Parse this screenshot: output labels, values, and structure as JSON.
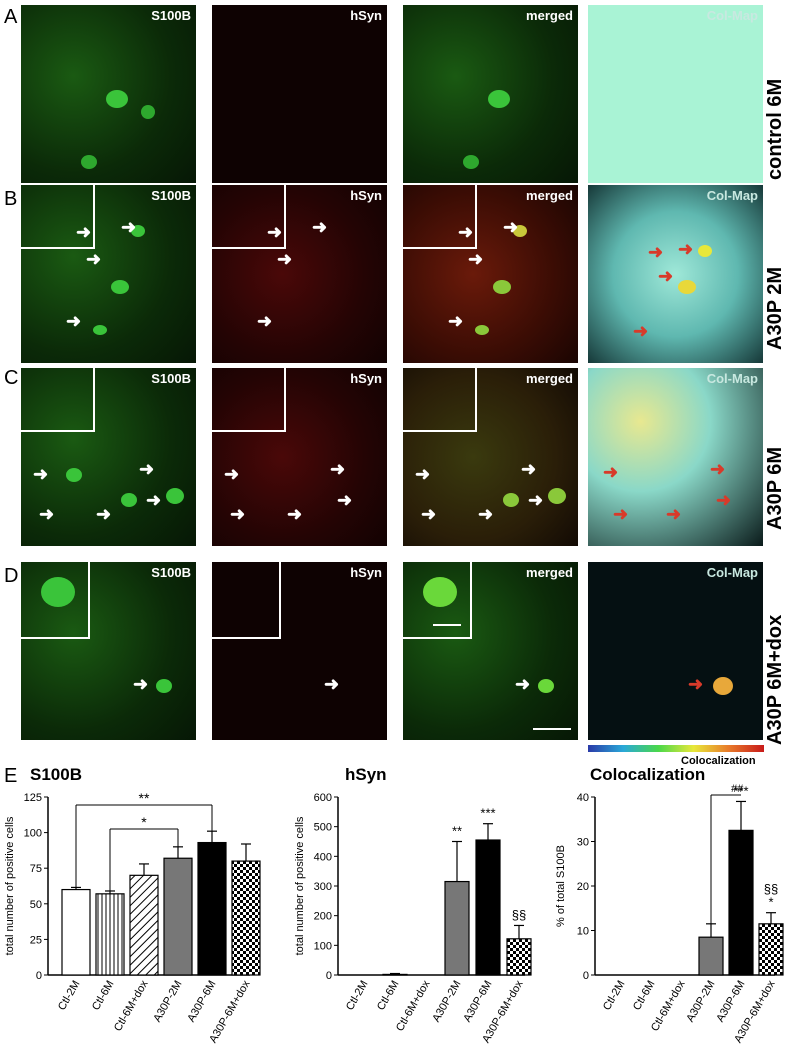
{
  "panels": {
    "A": {
      "letter": "A",
      "row_label": "control 6M"
    },
    "B": {
      "letter": "B",
      "row_label": "A30P 2M"
    },
    "C": {
      "letter": "C",
      "row_label": "A30P 6M"
    },
    "D": {
      "letter": "D",
      "row_label": "A30P 6M+dox"
    },
    "E": {
      "letter": "E"
    }
  },
  "tile_labels": {
    "s100b": "S100B",
    "hsyn": "hSyn",
    "merged": "merged",
    "colmap": "Col-Map"
  },
  "colorbar_label": "Colocalization",
  "chart_data": [
    {
      "type": "bar",
      "title": "S100B",
      "ylabel": "total number of positive cells",
      "categories": [
        "Ctl-2M",
        "Ctl-6M",
        "Ctl-6M+dox",
        "A30P-2M",
        "A30P-6M",
        "A30P-6M+dox"
      ],
      "values": [
        60,
        57,
        70,
        82,
        93,
        80
      ],
      "errors": [
        1.5,
        2,
        8,
        8,
        8,
        12
      ],
      "ylim": [
        0,
        125
      ],
      "yticks": [
        0,
        25,
        50,
        75,
        100,
        125
      ],
      "bar_styles": [
        "white",
        "vertical-lines",
        "diagonal-lines",
        "gray",
        "black",
        "checker"
      ],
      "annotations": [
        "**",
        "*"
      ],
      "bar_annotations": []
    },
    {
      "type": "bar",
      "title": "hSyn",
      "ylabel": "total number of positive cells",
      "categories": [
        "Ctl-2M",
        "Ctl-6M",
        "Ctl-6M+dox",
        "A30P-2M",
        "A30P-6M",
        "A30P-6M+dox"
      ],
      "values": [
        0,
        2,
        0,
        315,
        455,
        122
      ],
      "errors": [
        0,
        3,
        0,
        135,
        55,
        45
      ],
      "ylim": [
        0,
        600
      ],
      "yticks": [
        0,
        100,
        200,
        300,
        400,
        500,
        600
      ],
      "bar_styles": [
        "white",
        "vertical-lines",
        "diagonal-lines",
        "gray",
        "black",
        "checker"
      ],
      "annotations": [],
      "bar_annotations": [
        "",
        "",
        "",
        "**",
        "***",
        "§§"
      ]
    },
    {
      "type": "bar",
      "title": "Colocalization",
      "ylabel": "% of total S100B",
      "categories": [
        "Ctl-2M",
        "Ctl-6M",
        "Ctl-6M+dox",
        "A30P-2M",
        "A30P-6M",
        "A30P-6M+dox"
      ],
      "values": [
        0,
        0,
        0,
        8.5,
        32.5,
        11.5
      ],
      "errors": [
        0,
        0,
        0,
        3,
        6.5,
        2.5
      ],
      "ylim": [
        0,
        40
      ],
      "yticks": [
        0,
        10,
        20,
        30,
        40
      ],
      "bar_styles": [
        "white",
        "vertical-lines",
        "diagonal-lines",
        "gray",
        "black",
        "checker"
      ],
      "annotations": [
        "##"
      ],
      "bar_annotations": [
        "",
        "",
        "",
        "",
        "***",
        "§§\n*"
      ]
    }
  ]
}
